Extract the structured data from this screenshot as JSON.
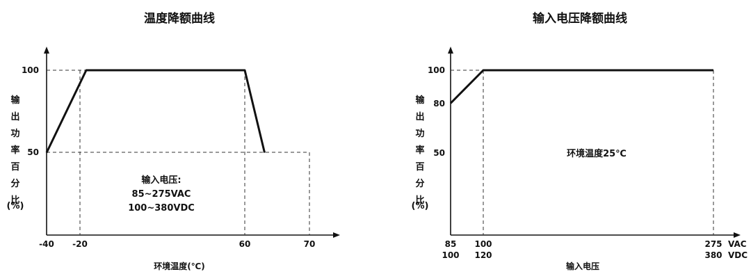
{
  "chart_data": [
    {
      "type": "line",
      "title": "温度降额曲线",
      "xlabel": "环境温度(℃)",
      "ylabel": "输出功率百分比(%)",
      "x_ticks": [
        "-40",
        "-20",
        "60",
        "70"
      ],
      "y_ticks": [
        "100",
        "50"
      ],
      "xlim": [
        -40,
        75
      ],
      "ylim": [
        0,
        100
      ],
      "series": [
        {
          "x": [
            -40,
            -20,
            60,
            70
          ],
          "y": [
            50,
            100,
            100,
            50
          ]
        }
      ],
      "annotation": [
        "输入电压:",
        "85~275VAC",
        "100~380VDC"
      ],
      "grid": false
    },
    {
      "type": "line",
      "title": "输入电压降额曲线",
      "xlabel": "输入电压",
      "ylabel": "输出功率百分比(%)",
      "x_ticks_row1": [
        "85",
        "100",
        "275"
      ],
      "x_ticks_row2": [
        "100",
        "120",
        "380"
      ],
      "x_units": [
        "VAC",
        "VDC"
      ],
      "y_ticks": [
        "100",
        "80",
        "50"
      ],
      "ylim": [
        0,
        100
      ],
      "series": [
        {
          "x": [
            85,
            100,
            275
          ],
          "y": [
            80,
            100,
            100
          ]
        }
      ],
      "annotation": [
        "环境温度25℃"
      ],
      "grid": false
    }
  ]
}
